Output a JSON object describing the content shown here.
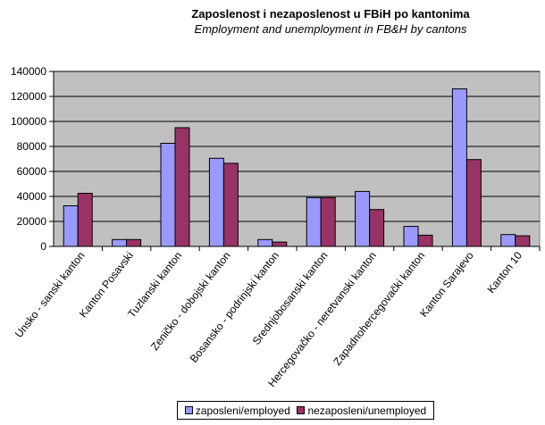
{
  "chart_data": {
    "type": "bar",
    "title": "Zaposlenost i nezaposlenost u FBiH po kantonima",
    "subtitle": "Employment and unemployment  in FB&H by cantons",
    "categories": [
      "Unsko - sanski kanton",
      "Kanton Posavski",
      "Tuzlanski kanton",
      "Zeničko - dobojski kanton",
      "Bosansko - podrinjski kanton",
      "Srednjobosanski kanton",
      "Hercegovačko - neretvanski kanton",
      "Zapadnohercegovački kanton",
      "Kanton Sarajevo",
      "Kanton 10"
    ],
    "series": [
      {
        "name": "zaposleni/employed",
        "color": "#9999FF",
        "values": [
          32500,
          5500,
          82500,
          70500,
          5500,
          39000,
          44000,
          16000,
          126000,
          9500
        ]
      },
      {
        "name": "nezaposleni/unemployed",
        "color": "#993366",
        "values": [
          42500,
          5500,
          95000,
          66500,
          3500,
          39000,
          29500,
          9000,
          69500,
          8500
        ]
      }
    ],
    "ylim": [
      0,
      140000
    ],
    "yticks": [
      "0",
      "20000",
      "40000",
      "60000",
      "80000",
      "100000",
      "120000",
      "140000"
    ],
    "plot_background": "#C0C0C0",
    "grid": true,
    "legend_position": "bottom"
  }
}
